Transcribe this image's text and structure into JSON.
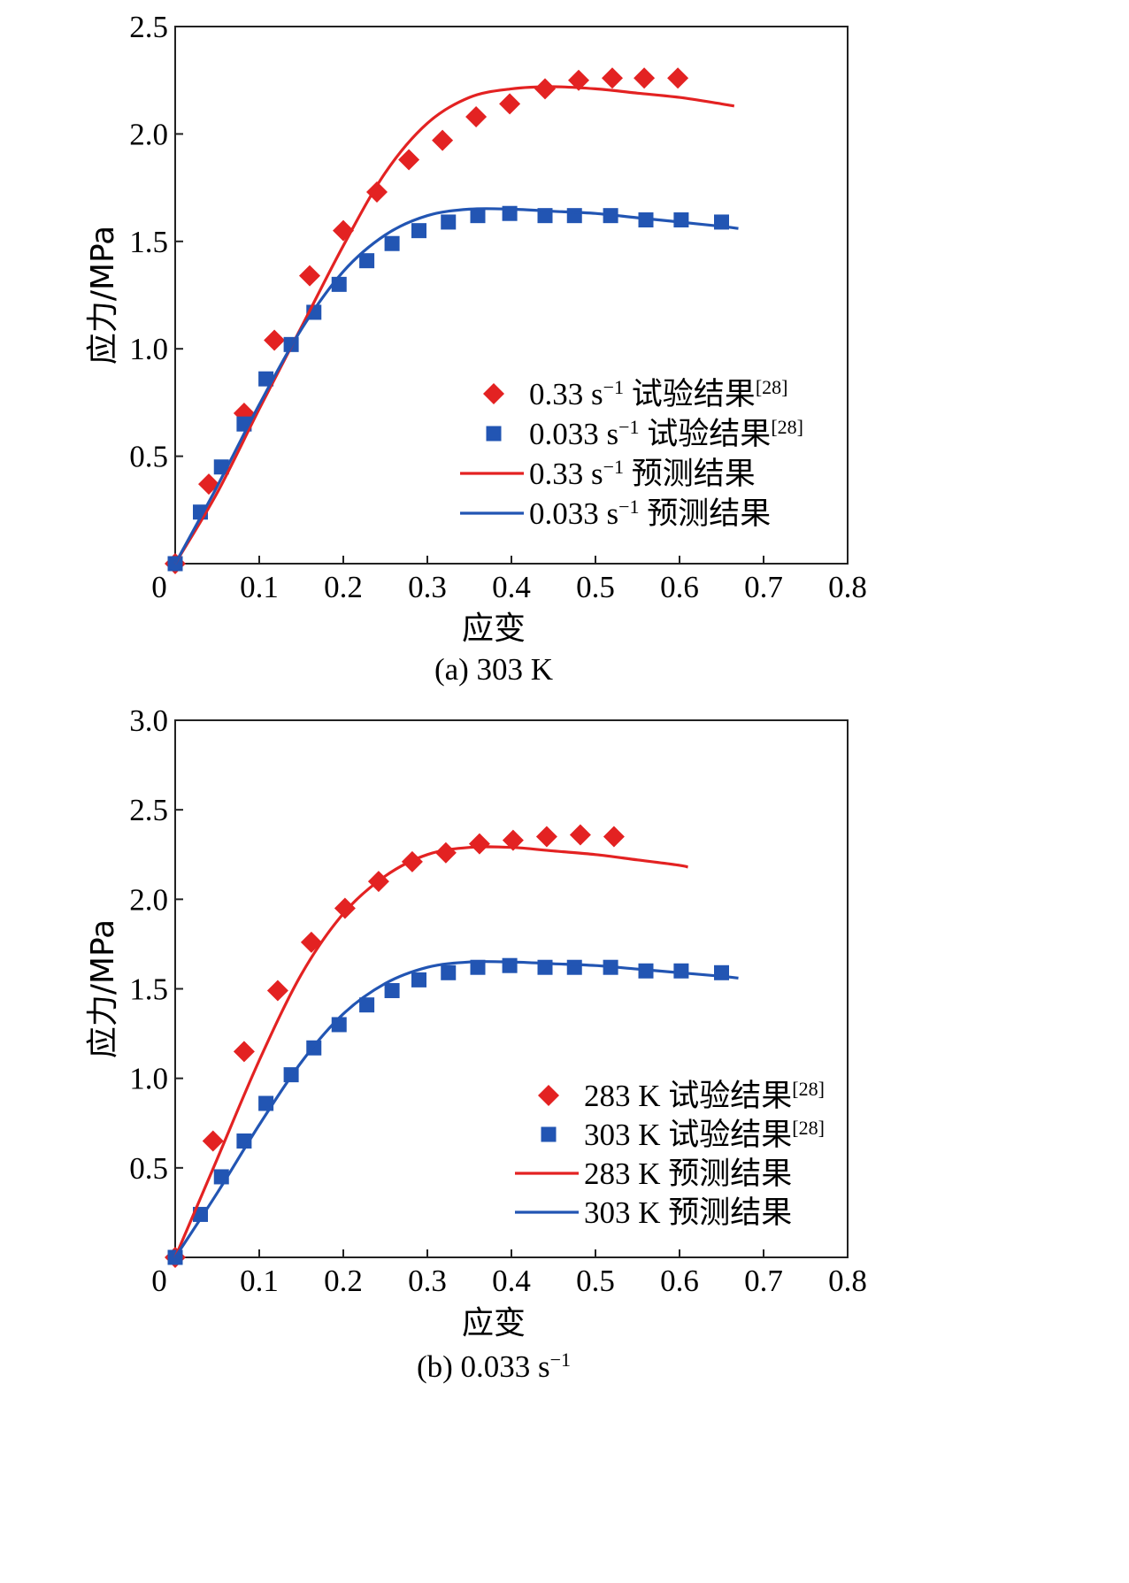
{
  "chart_data": [
    {
      "type": "line",
      "caption": "(a) 303 K",
      "xlabel": "应变",
      "ylabel": "应力/MPa",
      "xlim": [
        0,
        0.8
      ],
      "ylim": [
        0,
        2.5
      ],
      "xticks": [
        "0",
        "0.1",
        "0.2",
        "0.3",
        "0.4",
        "0.5",
        "0.6",
        "0.7",
        "0.8"
      ],
      "yticks": [
        "0.5",
        "1.0",
        "1.5",
        "2.0",
        "2.5"
      ],
      "xtick_values": [
        0,
        0.1,
        0.2,
        0.3,
        0.4,
        0.5,
        0.6,
        0.7,
        0.8
      ],
      "ytick_values": [
        0.5,
        1.0,
        1.5,
        2.0,
        2.5
      ],
      "legend_position": "bottom-right",
      "series": [
        {
          "name": "0.33 s⁻¹ 试验结果[28]",
          "kind": "scatter",
          "marker": "diamond",
          "color": "#e32222",
          "x": [
            0.0,
            0.04,
            0.082,
            0.118,
            0.16,
            0.2,
            0.24,
            0.278,
            0.318,
            0.358,
            0.398,
            0.44,
            0.48,
            0.52,
            0.558,
            0.598
          ],
          "y": [
            0.0,
            0.37,
            0.7,
            1.04,
            1.34,
            1.55,
            1.73,
            1.88,
            1.97,
            2.08,
            2.14,
            2.21,
            2.25,
            2.26,
            2.26,
            2.26
          ]
        },
        {
          "name": "0.033 s⁻¹ 试验结果[28]",
          "kind": "scatter",
          "marker": "square",
          "color": "#2255b3",
          "x": [
            0.0,
            0.03,
            0.055,
            0.082,
            0.108,
            0.138,
            0.165,
            0.195,
            0.228,
            0.258,
            0.29,
            0.325,
            0.36,
            0.398,
            0.44,
            0.475,
            0.518,
            0.56,
            0.602,
            0.65
          ],
          "y": [
            0.0,
            0.24,
            0.45,
            0.65,
            0.86,
            1.02,
            1.17,
            1.3,
            1.41,
            1.49,
            1.55,
            1.59,
            1.62,
            1.63,
            1.62,
            1.62,
            1.62,
            1.6,
            1.6,
            1.59
          ]
        },
        {
          "name": "0.33 s⁻¹ 预测结果",
          "kind": "line",
          "color": "#e32222",
          "x": [
            0.0,
            0.05,
            0.1,
            0.15,
            0.2,
            0.25,
            0.3,
            0.35,
            0.4,
            0.45,
            0.5,
            0.55,
            0.6,
            0.65,
            0.665
          ],
          "y": [
            0.0,
            0.33,
            0.72,
            1.1,
            1.48,
            1.82,
            2.05,
            2.17,
            2.21,
            2.22,
            2.21,
            2.19,
            2.17,
            2.14,
            2.13
          ]
        },
        {
          "name": "0.033 s⁻¹ 预测结果",
          "kind": "line",
          "color": "#2255b3",
          "x": [
            0.0,
            0.05,
            0.1,
            0.15,
            0.2,
            0.25,
            0.3,
            0.35,
            0.4,
            0.45,
            0.5,
            0.55,
            0.6,
            0.65,
            0.67
          ],
          "y": [
            0.0,
            0.36,
            0.74,
            1.09,
            1.36,
            1.53,
            1.62,
            1.65,
            1.65,
            1.64,
            1.63,
            1.61,
            1.59,
            1.57,
            1.56
          ]
        }
      ]
    },
    {
      "type": "line",
      "caption": "(b) 0.033 s⁻¹",
      "xlabel": "应变",
      "ylabel": "应力/MPa",
      "xlim": [
        0,
        0.8
      ],
      "ylim": [
        0,
        3.0
      ],
      "xticks": [
        "0",
        "0.1",
        "0.2",
        "0.3",
        "0.4",
        "0.5",
        "0.6",
        "0.7",
        "0.8"
      ],
      "yticks": [
        "0.5",
        "1.0",
        "1.5",
        "2.0",
        "2.5",
        "3.0"
      ],
      "xtick_values": [
        0,
        0.1,
        0.2,
        0.3,
        0.4,
        0.5,
        0.6,
        0.7,
        0.8
      ],
      "ytick_values": [
        0.5,
        1.0,
        1.5,
        2.0,
        2.5,
        3.0
      ],
      "legend_position": "bottom-right",
      "series": [
        {
          "name": "283 K 试验结果[28]",
          "kind": "scatter",
          "marker": "diamond",
          "color": "#e32222",
          "x": [
            0.0,
            0.045,
            0.082,
            0.122,
            0.162,
            0.202,
            0.242,
            0.282,
            0.322,
            0.362,
            0.402,
            0.442,
            0.482,
            0.522
          ],
          "y": [
            0.0,
            0.65,
            1.15,
            1.49,
            1.76,
            1.95,
            2.1,
            2.21,
            2.26,
            2.31,
            2.33,
            2.35,
            2.36,
            2.35
          ]
        },
        {
          "name": "303 K 试验结果[28]",
          "kind": "scatter",
          "marker": "square",
          "color": "#2255b3",
          "x": [
            0.0,
            0.03,
            0.055,
            0.082,
            0.108,
            0.138,
            0.165,
            0.195,
            0.228,
            0.258,
            0.29,
            0.325,
            0.36,
            0.398,
            0.44,
            0.475,
            0.518,
            0.56,
            0.602,
            0.65
          ],
          "y": [
            0.0,
            0.24,
            0.45,
            0.65,
            0.86,
            1.02,
            1.17,
            1.3,
            1.41,
            1.49,
            1.55,
            1.59,
            1.62,
            1.63,
            1.62,
            1.62,
            1.62,
            1.6,
            1.6,
            1.59
          ]
        },
        {
          "name": "283 K 预测结果",
          "kind": "line",
          "color": "#e32222",
          "x": [
            0.0,
            0.05,
            0.1,
            0.15,
            0.2,
            0.25,
            0.3,
            0.35,
            0.4,
            0.45,
            0.5,
            0.55,
            0.6,
            0.61
          ],
          "y": [
            0.0,
            0.55,
            1.1,
            1.58,
            1.92,
            2.13,
            2.25,
            2.29,
            2.29,
            2.27,
            2.25,
            2.22,
            2.19,
            2.18
          ]
        },
        {
          "name": "303 K 预测结果",
          "kind": "line",
          "color": "#2255b3",
          "x": [
            0.0,
            0.05,
            0.1,
            0.15,
            0.2,
            0.25,
            0.3,
            0.35,
            0.4,
            0.45,
            0.5,
            0.55,
            0.6,
            0.65,
            0.67
          ],
          "y": [
            0.0,
            0.36,
            0.74,
            1.09,
            1.36,
            1.53,
            1.62,
            1.65,
            1.65,
            1.64,
            1.63,
            1.61,
            1.59,
            1.57,
            1.56
          ]
        }
      ]
    }
  ]
}
